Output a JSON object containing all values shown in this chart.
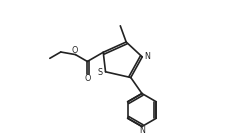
{
  "background": "#ffffff",
  "line_color": "#222222",
  "line_width": 1.2,
  "figsize": [
    2.34,
    1.39
  ],
  "dpi": 100,
  "xlim": [
    0,
    10
  ],
  "ylim": [
    0,
    6
  ]
}
